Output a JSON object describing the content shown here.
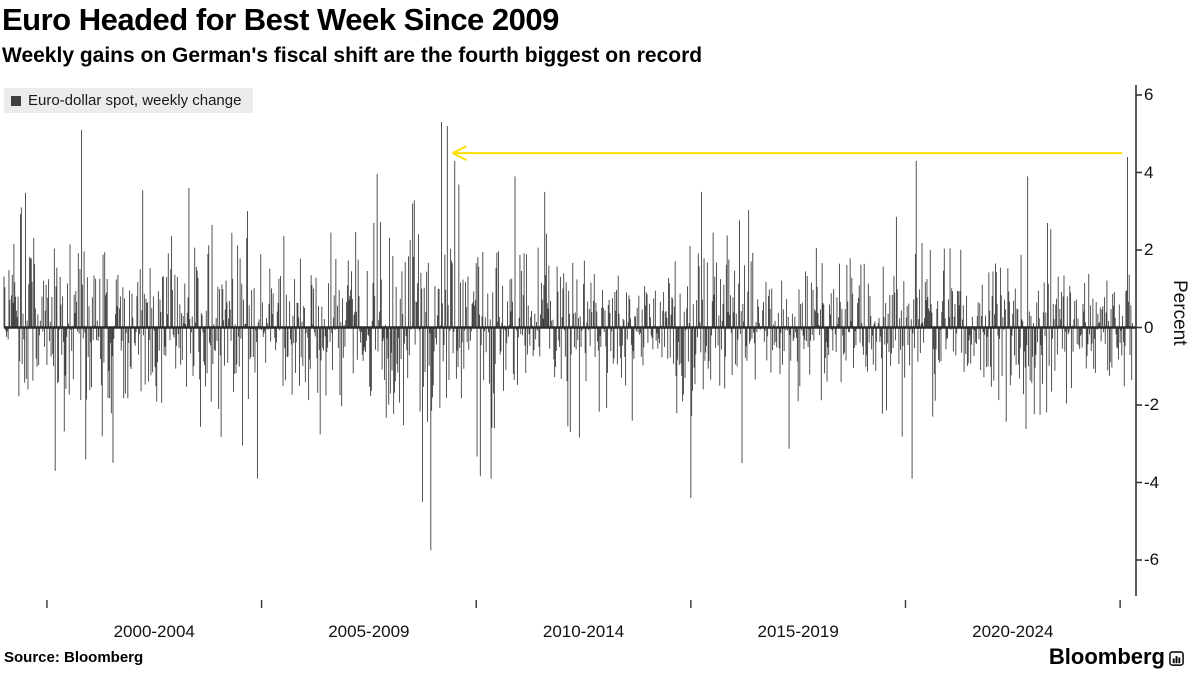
{
  "header": {
    "title": "Euro Headed for Best Week Since 2009",
    "subtitle": "Weekly gains on German's fiscal shift are the fourth biggest on record"
  },
  "legend": {
    "label": "Euro-dollar spot, weekly change",
    "swatch_color": "#3f3f3f"
  },
  "axes": {
    "y_label": "Percent"
  },
  "footer": {
    "source": "Source: Bloomberg",
    "brand": "Bloomberg"
  },
  "colors": {
    "bar": "#3f3f3f",
    "axis": "#333333",
    "zero_line": "#2b2b2b",
    "arrow": "#ffdf00",
    "legend_bg": "#ececec"
  },
  "chart_data": {
    "type": "bar",
    "title": "Euro Headed for Best Week Since 2009",
    "subtitle": "Weekly gains on German's fiscal shift are the fourth biggest on record",
    "series_name": "Euro-dollar spot, weekly change",
    "xlabel": "",
    "ylabel": "Percent",
    "ylim": [
      -6.6,
      6.3
    ],
    "y_ticks": [
      6,
      4,
      2,
      0,
      -2,
      -4,
      -6
    ],
    "x_start_year": 1999.0,
    "x_end_year": 2025.3,
    "points_per_year": 52,
    "x_tick_years": [
      2000,
      2005,
      2010,
      2015,
      2020,
      2025
    ],
    "x_tick_labels": [
      {
        "label": "2000-2004",
        "center_year": 2002.5
      },
      {
        "label": "2005-2009",
        "center_year": 2007.5
      },
      {
        "label": "2010-2014",
        "center_year": 2012.5
      },
      {
        "label": "2015-2019",
        "center_year": 2017.5
      },
      {
        "label": "2020-2024",
        "center_year": 2022.5
      }
    ],
    "legend_position": "top-left",
    "grid": false,
    "seed": 20090313,
    "soft_clamp": 4.0,
    "volatility_regimes": [
      {
        "from": 1999.0,
        "to": 2004.7,
        "sd": 1.25
      },
      {
        "from": 2004.7,
        "to": 2007.6,
        "sd": 0.95
      },
      {
        "from": 2007.6,
        "to": 2010.6,
        "sd": 1.5
      },
      {
        "from": 2010.6,
        "to": 2012.5,
        "sd": 1.1
      },
      {
        "from": 2012.5,
        "to": 2014.6,
        "sd": 0.75
      },
      {
        "from": 2014.6,
        "to": 2016.5,
        "sd": 1.15
      },
      {
        "from": 2016.5,
        "to": 2019.8,
        "sd": 0.8
      },
      {
        "from": 2019.8,
        "to": 2021.0,
        "sd": 1.0
      },
      {
        "from": 2021.0,
        "to": 2022.0,
        "sd": 0.75
      },
      {
        "from": 2022.0,
        "to": 2023.5,
        "sd": 1.05
      },
      {
        "from": 2023.5,
        "to": 2025.1,
        "sd": 0.75
      },
      {
        "from": 2025.1,
        "to": 2025.4,
        "sd": 1.1
      }
    ],
    "anchors": [
      {
        "year": 1999.4,
        "value": 3.1
      },
      {
        "year": 2000.2,
        "value": -3.7
      },
      {
        "year": 2000.8,
        "value": 5.1
      },
      {
        "year": 2000.9,
        "value": -3.4
      },
      {
        "year": 2003.3,
        "value": 3.6
      },
      {
        "year": 2004.9,
        "value": -3.9
      },
      {
        "year": 2008.75,
        "value": -4.5
      },
      {
        "year": 2008.95,
        "value": -5.75
      },
      {
        "year": 2009.2,
        "value": 5.3
      },
      {
        "year": 2009.33,
        "value": 5.2
      },
      {
        "year": 2009.5,
        "value": 4.3
      },
      {
        "year": 2010.35,
        "value": -3.9
      },
      {
        "year": 2010.9,
        "value": 3.9
      },
      {
        "year": 2011.6,
        "value": 3.5
      },
      {
        "year": 2015.0,
        "value": -4.4
      },
      {
        "year": 2015.25,
        "value": 3.5
      },
      {
        "year": 2016.2,
        "value": -3.5
      },
      {
        "year": 2020.15,
        "value": -3.9
      },
      {
        "year": 2020.25,
        "value": 4.3
      },
      {
        "year": 2022.85,
        "value": 3.9
      },
      {
        "year": 2025.17,
        "value": 4.4
      }
    ],
    "annotation": {
      "type": "arrow",
      "y_value": 4.5,
      "from_year": 2025.05,
      "to_year": 2009.45,
      "color": "#ffdf00",
      "meaning": "arrow from latest week's gain back to the 2009 record week"
    }
  }
}
